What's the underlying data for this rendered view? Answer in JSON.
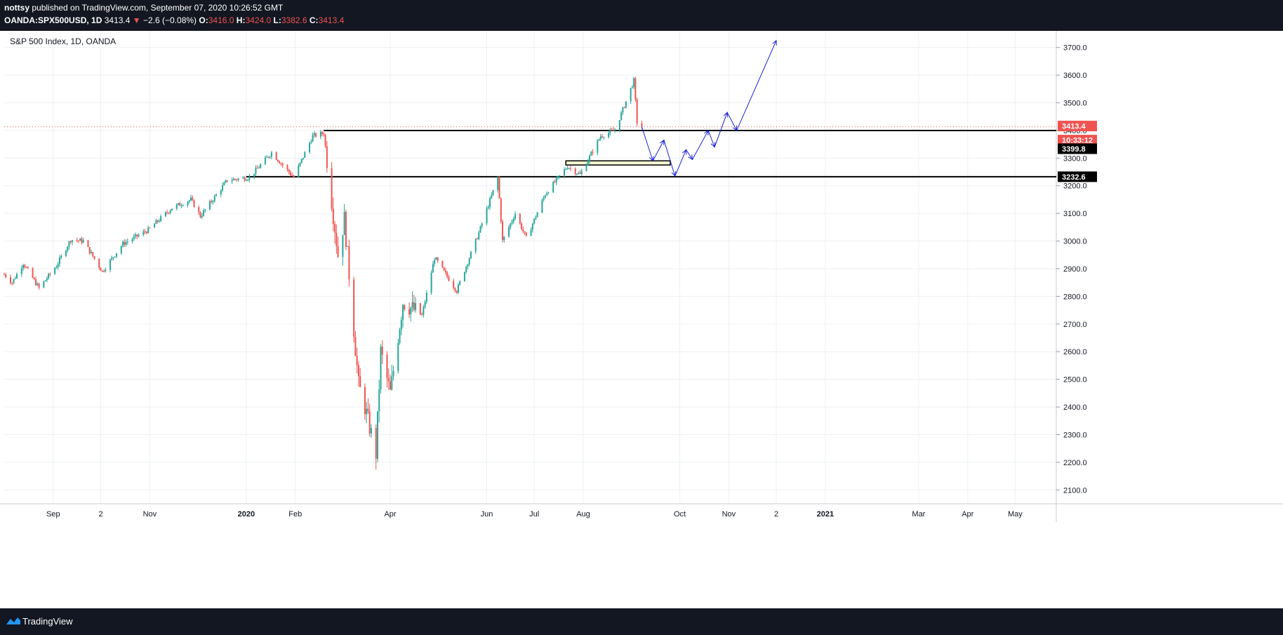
{
  "header": {
    "user": "nottsy",
    "published": "published on TradingView.com, September 07, 2020 10:26:52 GMT",
    "symbol": "OANDA:SPX500USD, 1D",
    "last": "3413.4",
    "arrow": "▼",
    "change": "−2.6 (−0.08%)",
    "o_label": "O:",
    "o_val": "3416.0",
    "h_label": "H:",
    "h_val": "3424.0",
    "l_label": "L:",
    "l_val": "3382.6",
    "c_label": "C:",
    "c_val": "3413.4"
  },
  "chart": {
    "label": "S&P 500 Index, 1D, OANDA",
    "badges": {
      "last_price": "3413.4",
      "countdown": "10:33:12",
      "level_resistance": "3399.8",
      "level_support": "3232.6"
    }
  },
  "chart_data": {
    "type": "candlestick",
    "title": "S&P 500 Index, 1D, OANDA",
    "ylim": [
      2050,
      3760
    ],
    "y_ticks": [
      2100,
      2200,
      2300,
      2400,
      2500,
      2600,
      2700,
      2800,
      2900,
      3000,
      3100,
      3200,
      3300,
      3400,
      3500,
      3600,
      3700
    ],
    "y_tick_labels": [
      "2100.0",
      "2200.0",
      "2300.0",
      "2400.0",
      "2500.0",
      "2600.0",
      "2700.0",
      "2800.0",
      "2900.0",
      "3000.0",
      "3100.0",
      "3200.0",
      "3300.0",
      "3400.0",
      "3500.0",
      "3600.0",
      "3700.0"
    ],
    "x_tick_labels": [
      {
        "label": "Sep",
        "date": "2019-09-01",
        "bold": false
      },
      {
        "label": "2",
        "date": "2019-10-01",
        "bold": false
      },
      {
        "label": "Nov",
        "date": "2019-11-01",
        "bold": false
      },
      {
        "label": "2020",
        "date": "2020-01-01",
        "bold": true
      },
      {
        "label": "Feb",
        "date": "2020-02-01",
        "bold": false
      },
      {
        "label": "Apr",
        "date": "2020-04-01",
        "bold": false
      },
      {
        "label": "Jun",
        "date": "2020-06-01",
        "bold": false
      },
      {
        "label": "Jul",
        "date": "2020-07-01",
        "bold": false
      },
      {
        "label": "Aug",
        "date": "2020-08-01",
        "bold": false
      },
      {
        "label": "Oct",
        "date": "2020-10-01",
        "bold": false
      },
      {
        "label": "Nov",
        "date": "2020-11-01",
        "bold": false
      },
      {
        "label": "2",
        "date": "2020-12-01",
        "bold": false
      },
      {
        "label": "2021",
        "date": "2021-01-01",
        "bold": true
      },
      {
        "label": "Mar",
        "date": "2021-03-01",
        "bold": false
      },
      {
        "label": "Apr",
        "date": "2021-04-01",
        "bold": false
      },
      {
        "label": "May",
        "date": "2021-05-01",
        "bold": false
      }
    ],
    "x_axis_start": "2019-08-01",
    "x_axis_end": "2021-05-27",
    "price_path": [
      {
        "date": "2019-08-01",
        "close": 2880
      },
      {
        "date": "2019-08-06",
        "close": 2850
      },
      {
        "date": "2019-08-13",
        "close": 2920
      },
      {
        "date": "2019-08-23",
        "close": 2830
      },
      {
        "date": "2019-09-03",
        "close": 2910
      },
      {
        "date": "2019-09-12",
        "close": 3005
      },
      {
        "date": "2019-09-20",
        "close": 3000
      },
      {
        "date": "2019-10-02",
        "close": 2890
      },
      {
        "date": "2019-10-15",
        "close": 2990
      },
      {
        "date": "2019-10-31",
        "close": 3040
      },
      {
        "date": "2019-11-15",
        "close": 3120
      },
      {
        "date": "2019-11-27",
        "close": 3150
      },
      {
        "date": "2019-12-03",
        "close": 3090
      },
      {
        "date": "2019-12-20",
        "close": 3220
      },
      {
        "date": "2020-01-03",
        "close": 3230
      },
      {
        "date": "2020-01-17",
        "close": 3320
      },
      {
        "date": "2020-01-31",
        "close": 3230
      },
      {
        "date": "2020-02-12",
        "close": 3380
      },
      {
        "date": "2020-02-19",
        "close": 3390
      },
      {
        "date": "2020-02-28",
        "close": 2950
      },
      {
        "date": "2020-03-03",
        "close": 3080
      },
      {
        "date": "2020-03-12",
        "close": 2480
      },
      {
        "date": "2020-03-16",
        "close": 2400
      },
      {
        "date": "2020-03-23",
        "close": 2230
      },
      {
        "date": "2020-03-26",
        "close": 2600
      },
      {
        "date": "2020-04-01",
        "close": 2450
      },
      {
        "date": "2020-04-09",
        "close": 2780
      },
      {
        "date": "2020-04-21",
        "close": 2730
      },
      {
        "date": "2020-04-29",
        "close": 2940
      },
      {
        "date": "2020-05-13",
        "close": 2820
      },
      {
        "date": "2020-05-27",
        "close": 3030
      },
      {
        "date": "2020-06-08",
        "close": 3230
      },
      {
        "date": "2020-06-11",
        "close": 3000
      },
      {
        "date": "2020-06-19",
        "close": 3100
      },
      {
        "date": "2020-06-26",
        "close": 3010
      },
      {
        "date": "2020-07-08",
        "close": 3170
      },
      {
        "date": "2020-07-22",
        "close": 3270
      },
      {
        "date": "2020-07-30",
        "close": 3240
      },
      {
        "date": "2020-08-12",
        "close": 3380
      },
      {
        "date": "2020-08-21",
        "close": 3400
      },
      {
        "date": "2020-09-02",
        "close": 3580
      },
      {
        "date": "2020-09-04",
        "close": 3430
      },
      {
        "date": "2020-09-07",
        "close": 3413.4
      }
    ],
    "levels": [
      3399.8,
      3232.6
    ],
    "last_price": 3413.4,
    "annotations": {
      "zone": {
        "start": "2020-07-21",
        "end": "2020-09-25",
        "y_low": 3275,
        "y_high": 3290
      },
      "projection_path": [
        {
          "date": "2020-09-07",
          "price": 3413
        },
        {
          "date": "2020-09-14",
          "price": 3290
        },
        {
          "date": "2020-09-21",
          "price": 3365
        },
        {
          "date": "2020-09-28",
          "price": 3235
        },
        {
          "date": "2020-10-05",
          "price": 3330
        },
        {
          "date": "2020-10-09",
          "price": 3295
        },
        {
          "date": "2020-10-19",
          "price": 3400
        },
        {
          "date": "2020-10-23",
          "price": 3340
        },
        {
          "date": "2020-10-31",
          "price": 3465
        },
        {
          "date": "2020-11-06",
          "price": 3400
        },
        {
          "date": "2020-12-01",
          "price": 3725
        }
      ]
    },
    "grid": true
  },
  "footer": {
    "brand": "TradingView"
  },
  "colors": {
    "up": "#26a69a",
    "down": "#ef5350",
    "projection": "#1a23d6",
    "zone_fill": "#f1f4cf",
    "background": "#131722"
  }
}
